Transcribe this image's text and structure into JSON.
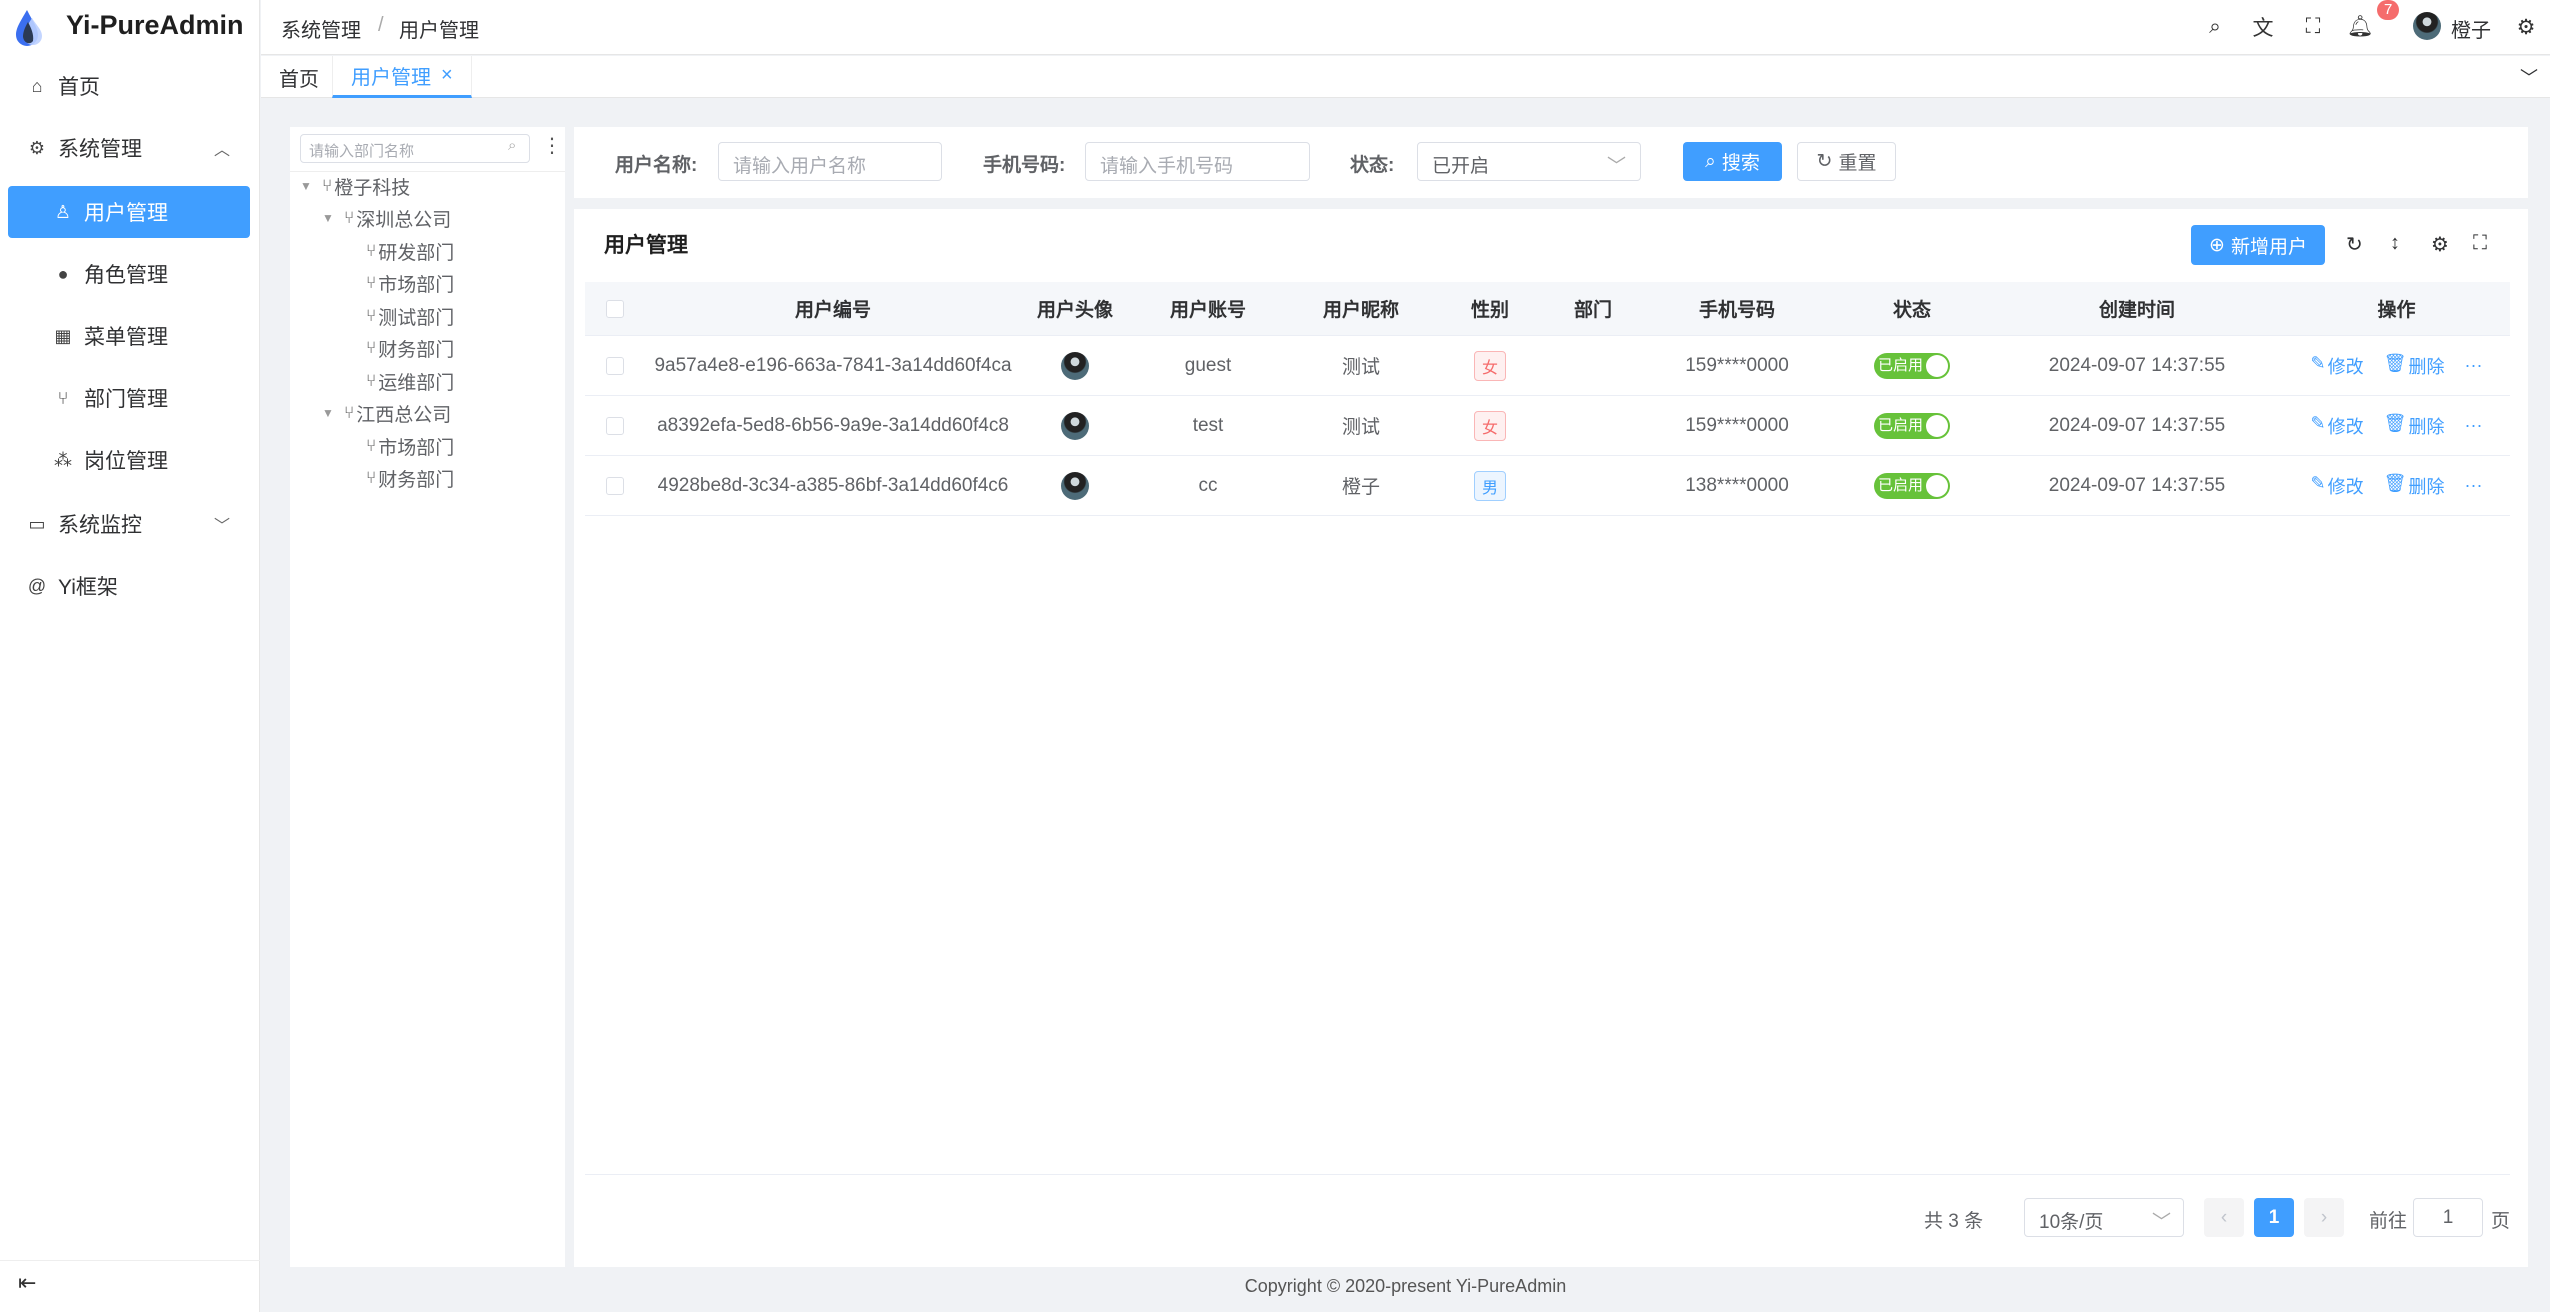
{
  "app": {
    "title": "Yi-PureAdmin",
    "footer": "Copyright © 2020-present Yi-PureAdmin"
  },
  "sidebar": {
    "items": [
      {
        "label": "首页",
        "icon": "home-icon"
      },
      {
        "label": "系统管理",
        "icon": "gear-icon",
        "expanded": true
      },
      {
        "label": "用户管理",
        "icon": "user-lock-icon",
        "active": true
      },
      {
        "label": "角色管理",
        "icon": "user-role-icon"
      },
      {
        "label": "菜单管理",
        "icon": "menu-grid-icon"
      },
      {
        "label": "部门管理",
        "icon": "branch-icon"
      },
      {
        "label": "岗位管理",
        "icon": "org-icon"
      },
      {
        "label": "系统监控",
        "icon": "monitor-icon"
      },
      {
        "label": "Yi框架",
        "icon": "at-icon"
      }
    ]
  },
  "header": {
    "breadcrumb": [
      "系统管理",
      "/",
      "用户管理"
    ],
    "notification_count": "7",
    "username": "橙子"
  },
  "tabs": [
    {
      "label": "首页"
    },
    {
      "label": "用户管理",
      "active": true,
      "close": "×"
    }
  ],
  "tree": {
    "placeholder": "请输入部门名称",
    "nodes": [
      {
        "label": "橙子科技"
      },
      {
        "label": "深圳总公司"
      },
      {
        "label": "研发部门"
      },
      {
        "label": "市场部门"
      },
      {
        "label": "测试部门"
      },
      {
        "label": "财务部门"
      },
      {
        "label": "运维部门"
      },
      {
        "label": "江西总公司"
      },
      {
        "label": "市场部门"
      },
      {
        "label": "财务部门"
      }
    ]
  },
  "search": {
    "username_label": "用户名称:",
    "username_placeholder": "请输入用户名称",
    "phone_label": "手机号码:",
    "phone_placeholder": "请输入手机号码",
    "status_label": "状态:",
    "status_value": "已开启",
    "search_btn": "搜索",
    "reset_btn": "重置"
  },
  "table": {
    "title": "用户管理",
    "add_btn": "新增用户",
    "columns": [
      "用户编号",
      "用户头像",
      "用户账号",
      "用户昵称",
      "性别",
      "部门",
      "手机号码",
      "状态",
      "创建时间",
      "操作"
    ],
    "rows": [
      {
        "id": "9a57a4e8-e196-663a-7841-3a14dd60f4ca",
        "account": "guest",
        "nickname": "测试",
        "gender": "女",
        "dept": "",
        "phone": "159****0000",
        "status": "已启用",
        "created": "2024-09-07 14:37:55"
      },
      {
        "id": "a8392efa-5ed8-6b56-9a9e-3a14dd60f4c8",
        "account": "test",
        "nickname": "测试",
        "gender": "女",
        "dept": "",
        "phone": "159****0000",
        "status": "已启用",
        "created": "2024-09-07 14:37:55"
      },
      {
        "id": "4928be8d-3c34-a385-86bf-3a14dd60f4c6",
        "account": "cc",
        "nickname": "橙子",
        "gender": "男",
        "dept": "",
        "phone": "138****0000",
        "status": "已启用",
        "created": "2024-09-07 14:37:55"
      }
    ],
    "edit": "修改",
    "delete": "删除",
    "more": "···"
  },
  "pagination": {
    "total": "共 3 条",
    "page_size": "10条/页",
    "current": "1",
    "goto_label": "前往",
    "goto_value": "1",
    "page_suffix": "页"
  },
  "colors": {
    "primary": "#409eff",
    "success": "#67c23a",
    "danger": "#f56c6c"
  }
}
